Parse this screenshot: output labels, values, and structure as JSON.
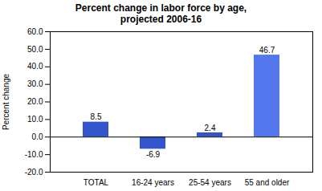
{
  "chart_data": {
    "type": "bar",
    "title": "Percent change in labor force by age,\nprojected 2006-16",
    "ylabel": "Percent change",
    "categories": [
      "TOTAL",
      "16-24 years",
      "25-54 years",
      "55 and older"
    ],
    "values": [
      8.5,
      -6.9,
      2.4,
      46.7
    ],
    "colors": [
      "#3355cc",
      "#3355cc",
      "#3355cc",
      "#5577ee"
    ],
    "ylim": [
      -20.0,
      60.0
    ],
    "yticks": [
      {
        "value": -20,
        "label": "-20.0"
      },
      {
        "value": -10,
        "label": "-10.0"
      },
      {
        "value": 0,
        "label": "0.0"
      },
      {
        "value": 10,
        "label": "10.0"
      },
      {
        "value": 20,
        "label": "20.0"
      },
      {
        "value": 30,
        "label": "30.0"
      },
      {
        "value": 40,
        "label": "40.0"
      },
      {
        "value": 50,
        "label": "50.0"
      },
      {
        "value": 60,
        "label": "60.0"
      }
    ],
    "grid": false,
    "data_labels": true
  }
}
